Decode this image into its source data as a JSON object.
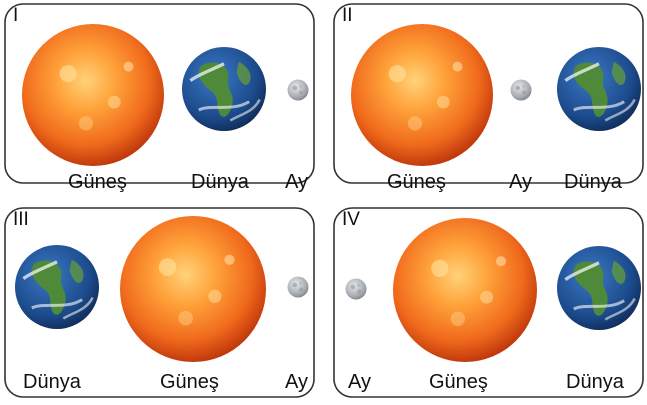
{
  "panels": [
    {
      "id": "I",
      "labels": [
        "Güneş",
        "Dünya",
        "Ay"
      ]
    },
    {
      "id": "II",
      "labels": [
        "Güneş",
        "Ay",
        "Dünya"
      ]
    },
    {
      "id": "III",
      "labels": [
        "Dünya",
        "Güneş",
        "Ay"
      ]
    },
    {
      "id": "IV",
      "labels": [
        "Ay",
        "Güneş",
        "Dünya"
      ]
    }
  ],
  "colors": {
    "sun_core": "#ffb347",
    "sun_edge": "#e04a10",
    "earth_ocean": "#1f4d8f",
    "earth_land": "#4f8a3a",
    "moon": "#b9bcc2",
    "frame": "#333333"
  }
}
